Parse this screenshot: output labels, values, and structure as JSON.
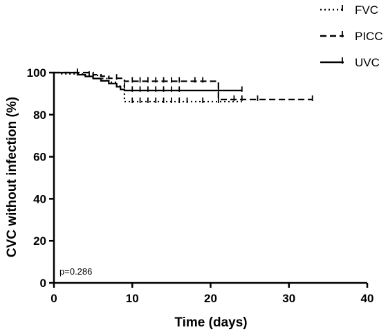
{
  "chart_data": {
    "type": "line",
    "title": "",
    "xlabel": "Time (days)",
    "ylabel": "CVC without infection (%)",
    "xlim": [
      0,
      40
    ],
    "ylim": [
      0,
      100
    ],
    "xticks": [
      0,
      10,
      20,
      30,
      40
    ],
    "yticks": [
      0,
      20,
      40,
      60,
      80,
      100
    ],
    "grid": false,
    "legend": "top-right",
    "annotation": "p=0.286",
    "series": [
      {
        "name": "FVC",
        "style": "dotted",
        "color": "#000000",
        "steps": [
          [
            0,
            100
          ],
          [
            1,
            99.4
          ],
          [
            4,
            98.7
          ],
          [
            6,
            97.2
          ],
          [
            7,
            95.4
          ],
          [
            8,
            93.6
          ],
          [
            9,
            86.2
          ],
          [
            24,
            86.2
          ]
        ],
        "censored": [
          [
            3,
            99.4
          ],
          [
            4.5,
            98.7
          ],
          [
            10,
            86.2
          ],
          [
            11,
            86.2
          ],
          [
            12,
            86.2
          ],
          [
            13,
            86.2
          ],
          [
            14,
            86.2
          ],
          [
            15,
            86.2
          ],
          [
            16,
            86.2
          ],
          [
            17,
            86.2
          ],
          [
            19,
            86.2
          ],
          [
            21,
            86.2
          ]
        ]
      },
      {
        "name": "PICC",
        "style": "dashed",
        "color": "#000000",
        "steps": [
          [
            0,
            100
          ],
          [
            5,
            99.0
          ],
          [
            6,
            98.3
          ],
          [
            7,
            97.3
          ],
          [
            9,
            95.9
          ],
          [
            21,
            87.2
          ],
          [
            33,
            87.2
          ]
        ],
        "censored": [
          [
            3,
            100
          ],
          [
            8,
            97.3
          ],
          [
            10,
            95.9
          ],
          [
            11,
            95.9
          ],
          [
            12,
            95.9
          ],
          [
            13,
            95.9
          ],
          [
            14,
            95.9
          ],
          [
            15,
            95.9
          ],
          [
            16,
            95.9
          ],
          [
            18,
            95.9
          ],
          [
            19,
            95.9
          ],
          [
            23,
            87.2
          ],
          [
            24,
            87.2
          ],
          [
            26,
            87.2
          ],
          [
            33,
            87.2
          ]
        ]
      },
      {
        "name": "UVC",
        "style": "solid",
        "color": "#000000",
        "steps": [
          [
            0,
            100
          ],
          [
            3,
            99.0
          ],
          [
            4,
            98.2
          ],
          [
            5,
            97.2
          ],
          [
            6,
            96.1
          ],
          [
            7,
            94.8
          ],
          [
            8,
            93.3
          ],
          [
            8.5,
            92.0
          ],
          [
            9,
            91.5
          ],
          [
            24,
            91.5
          ]
        ],
        "censored": [
          [
            9,
            93.3
          ],
          [
            10,
            91.5
          ],
          [
            11,
            91.5
          ],
          [
            12,
            91.5
          ],
          [
            13,
            91.5
          ],
          [
            14,
            91.5
          ],
          [
            15,
            91.5
          ],
          [
            16,
            91.5
          ],
          [
            21,
            91.5
          ],
          [
            24,
            91.5
          ]
        ]
      }
    ]
  }
}
